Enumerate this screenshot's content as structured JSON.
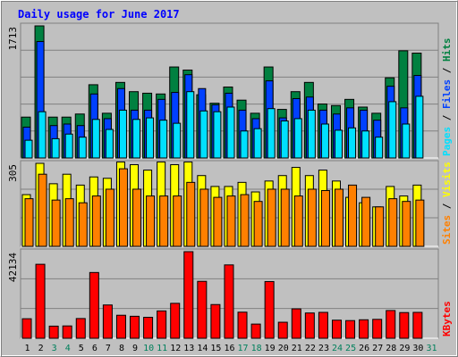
{
  "colors": {
    "bg": "#c0c0c0",
    "title": "#0000ff",
    "hits": "#008040",
    "files": "#0040ff",
    "pages": "#00e0ff",
    "visits": "#ffff00",
    "sites": "#ff8000",
    "kbytes": "#ff0000",
    "weekend_day": "#00805c",
    "grid": "#808080"
  },
  "chart_data": {
    "type": "bar",
    "title": "Daily usage for June 2017",
    "categories": [
      "1",
      "2",
      "3",
      "4",
      "5",
      "6",
      "7",
      "8",
      "9",
      "10",
      "11",
      "12",
      "13",
      "14",
      "15",
      "16",
      "17",
      "18",
      "19",
      "20",
      "21",
      "22",
      "23",
      "24",
      "25",
      "26",
      "27",
      "28",
      "29",
      "30",
      "31"
    ],
    "weekend_days": [
      "3",
      "4",
      "10",
      "11",
      "17",
      "18",
      "24",
      "25",
      "31"
    ],
    "panels": [
      {
        "ymax_label": "1713",
        "ymax": 1713,
        "legend": [
          "Pages",
          "Files",
          "Hits"
        ],
        "series": [
          {
            "name": "Hits",
            "values": [
              530,
              1713,
              530,
              530,
              570,
              950,
              580,
              980,
              860,
              840,
              830,
              1180,
              1140,
              820,
              710,
              920,
              750,
              580,
              1180,
              630,
              860,
              980,
              700,
              680,
              760,
              660,
              580,
              1040,
              1390,
              1360,
              0
            ]
          },
          {
            "name": "Files",
            "values": [
              400,
              1510,
              420,
              440,
              420,
              830,
              510,
              900,
              620,
              620,
              760,
              850,
              1080,
              900,
              690,
              840,
              620,
              510,
              1000,
              520,
              770,
              790,
              620,
              570,
              650,
              620,
              490,
              930,
              650,
              1070,
              0
            ]
          },
          {
            "name": "Pages",
            "values": [
              230,
              600,
              250,
              310,
              270,
              500,
              370,
              620,
              500,
              520,
              490,
              450,
              860,
              610,
              600,
              660,
              350,
              380,
              640,
              480,
              510,
              620,
              440,
              360,
              390,
              350,
              270,
              730,
              440,
              800,
              0
            ]
          }
        ]
      },
      {
        "ymax_label": "305",
        "ymax": 305,
        "legend": [
          "Sites",
          "Visits"
        ],
        "series": [
          {
            "name": "Visits",
            "values": [
              190,
              305,
              230,
              265,
              225,
              255,
              250,
              310,
              300,
              280,
              310,
              300,
              310,
              260,
              220,
              220,
              235,
              200,
              240,
              260,
              290,
              260,
              280,
              240,
              180,
              160,
              145,
              220,
              185,
              225,
              0
            ]
          },
          {
            "name": "Sites",
            "values": [
              175,
              265,
              170,
              175,
              160,
              185,
              210,
              285,
              210,
              185,
              185,
              185,
              235,
              210,
              180,
              185,
              190,
              165,
              210,
              210,
              185,
              210,
              205,
              210,
              225,
              180,
              145,
              175,
              165,
              170,
              0
            ]
          }
        ]
      },
      {
        "ymax_label": "42134",
        "ymax": 42134,
        "legend": [
          "KBytes"
        ],
        "series": [
          {
            "name": "KBytes",
            "values": [
              9500,
              36000,
              5900,
              6000,
              9600,
              32000,
              16200,
              11200,
              10700,
              10200,
              13300,
              17000,
              42134,
              27700,
              16400,
              35700,
              12700,
              6900,
              27600,
              7800,
              14300,
              12300,
              12600,
              8800,
              8600,
              9000,
              9200,
              13500,
              12500,
              12600,
              0
            ]
          }
        ]
      }
    ]
  }
}
